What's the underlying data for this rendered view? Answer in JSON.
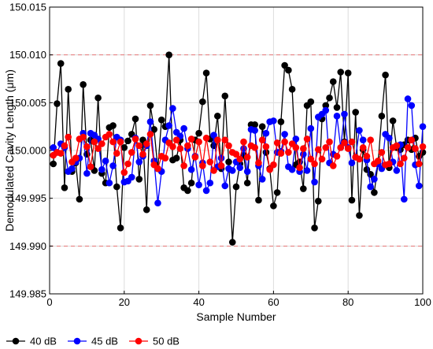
{
  "chart_data": {
    "type": "line",
    "xlabel": "Sample Number",
    "ylabel": "Demodulated Cavity Length (μm)",
    "xlim": [
      0,
      100
    ],
    "ylim": [
      149.985,
      150.015
    ],
    "xticks": [
      0,
      20,
      40,
      60,
      80,
      100
    ],
    "xtick_labels": [
      "0",
      "20",
      "40",
      "60",
      "80",
      "100"
    ],
    "yticks": [
      149.985,
      149.99,
      149.995,
      150.0,
      150.005,
      150.01,
      150.015
    ],
    "ytick_labels": [
      "149.985",
      "149.990",
      "149.995",
      "150.000",
      "150.005",
      "150.010",
      "150.015"
    ],
    "grid": true,
    "legend_position": "bottom",
    "reference_lines": [
      150.01,
      149.99
    ],
    "reference_line_color": "#e8797a",
    "series": [
      {
        "name": "40 dB",
        "color": "#000000",
        "x": [
          1,
          2,
          3,
          4,
          5,
          6,
          7,
          8,
          9,
          10,
          11,
          12,
          13,
          14,
          15,
          16,
          17,
          18,
          19,
          20,
          21,
          22,
          23,
          24,
          25,
          26,
          27,
          28,
          29,
          30,
          31,
          32,
          33,
          34,
          35,
          36,
          37,
          38,
          39,
          40,
          41,
          42,
          43,
          44,
          45,
          46,
          47,
          48,
          49,
          50,
          51,
          52,
          53,
          54,
          55,
          56,
          57,
          58,
          59,
          60,
          61,
          62,
          63,
          64,
          65,
          66,
          67,
          68,
          69,
          70,
          71,
          72,
          73,
          74,
          75,
          76,
          77,
          78,
          79,
          80,
          81,
          82,
          83,
          84,
          85,
          86,
          87,
          88,
          89,
          90,
          91,
          92,
          93,
          94,
          95,
          96,
          97,
          98,
          99,
          100
        ],
        "values": [
          149.9986,
          150.0049,
          150.0091,
          149.9961,
          150.0064,
          149.9978,
          149.9987,
          149.9949,
          150.0069,
          149.9996,
          150.0011,
          149.9979,
          150.0055,
          149.9976,
          149.9966,
          150.0024,
          150.0026,
          149.9962,
          149.9919,
          150.0003,
          150.001,
          150.0017,
          150.0033,
          149.997,
          150.0011,
          149.9938,
          150.0047,
          150.0022,
          149.9981,
          150.0032,
          150.0025,
          150.01,
          149.999,
          149.9992,
          150.0011,
          149.9961,
          149.9958,
          149.9966,
          150.0011,
          150.0018,
          150.0051,
          150.0081,
          150.0012,
          150.0005,
          150.0036,
          149.9981,
          150.0057,
          149.9988,
          149.9904,
          149.9962,
          149.9986,
          149.9995,
          149.9966,
          150.0027,
          150.0027,
          149.9948,
          150.0025,
          149.9998,
          149.9981,
          149.9942,
          149.9956,
          150.003,
          150.0089,
          150.0084,
          150.0064,
          149.9985,
          149.9988,
          149.996,
          150.0047,
          150.0051,
          149.9919,
          149.9947,
          150.0033,
          150.0047,
          150.0055,
          150.0072,
          150.0045,
          150.0082,
          150.0009,
          150.0081,
          149.9948,
          150.004,
          149.9932,
          150.0001,
          149.998,
          149.9975,
          149.9956,
          149.9986,
          150.0036,
          150.0079,
          149.9982,
          150.0031,
          150.0003,
          150.0001,
          150.0006,
          150.0011,
          150.0001,
          150.0013,
          149.9994,
          149.9998
        ]
      },
      {
        "name": "45 dB",
        "color": "#0000ff",
        "x": [
          1,
          2,
          3,
          4,
          5,
          6,
          7,
          8,
          9,
          10,
          11,
          12,
          13,
          14,
          15,
          16,
          17,
          18,
          19,
          20,
          21,
          22,
          23,
          24,
          25,
          26,
          27,
          28,
          29,
          30,
          31,
          32,
          33,
          34,
          35,
          36,
          37,
          38,
          39,
          40,
          41,
          42,
          43,
          44,
          45,
          46,
          47,
          48,
          49,
          50,
          51,
          52,
          53,
          54,
          55,
          56,
          57,
          58,
          59,
          60,
          61,
          62,
          63,
          64,
          65,
          66,
          67,
          68,
          69,
          70,
          71,
          72,
          73,
          74,
          75,
          76,
          77,
          78,
          79,
          80,
          81,
          82,
          83,
          84,
          85,
          86,
          87,
          88,
          89,
          90,
          91,
          92,
          93,
          94,
          95,
          96,
          97,
          98,
          99,
          100
        ],
        "values": [
          150.0003,
          149.9998,
          150.0007,
          150.0003,
          149.9978,
          149.9981,
          149.9988,
          149.9992,
          150.0018,
          149.9976,
          150.0018,
          150.0016,
          150.0012,
          149.998,
          149.9989,
          149.9966,
          149.9984,
          150.0014,
          150.0011,
          149.9967,
          149.9968,
          149.9972,
          150.0013,
          149.9988,
          149.9994,
          150.0005,
          150.003,
          149.9989,
          149.9945,
          149.9978,
          150.0011,
          150.0026,
          150.0044,
          150.0019,
          150.0015,
          150.0023,
          150.0002,
          149.998,
          149.9994,
          149.9964,
          149.9987,
          149.9958,
          149.9966,
          150.0016,
          149.9983,
          149.9992,
          149.9963,
          149.9981,
          149.9979,
          149.9988,
          149.9982,
          150.0002,
          149.9978,
          150.0022,
          150.0021,
          149.9984,
          149.997,
          150.0018,
          150.003,
          150.0031,
          149.9998,
          149.9999,
          150.0017,
          149.9983,
          149.998,
          150.0012,
          149.9978,
          149.9996,
          149.9979,
          150.0023,
          149.9967,
          150.0035,
          150.0038,
          150.0042,
          149.9987,
          149.9996,
          150.0036,
          150.0003,
          150.0038,
          150.0003,
          149.9987,
          149.9993,
          150.0021,
          150.0011,
          149.999,
          149.9962,
          149.997,
          149.9986,
          149.9981,
          150.0017,
          150.0013,
          149.9988,
          149.9979,
          150.0006,
          149.9949,
          150.0054,
          150.0047,
          149.9985,
          149.9963,
          150.0025
        ]
      },
      {
        "name": "50 dB",
        "color": "#ff0000",
        "x": [
          1,
          2,
          3,
          4,
          5,
          6,
          7,
          8,
          9,
          10,
          11,
          12,
          13,
          14,
          15,
          16,
          17,
          18,
          19,
          20,
          21,
          22,
          23,
          24,
          25,
          26,
          27,
          28,
          29,
          30,
          31,
          32,
          33,
          34,
          35,
          36,
          37,
          38,
          39,
          40,
          41,
          42,
          43,
          44,
          45,
          46,
          47,
          48,
          49,
          50,
          51,
          52,
          53,
          54,
          55,
          56,
          57,
          58,
          59,
          60,
          61,
          62,
          63,
          64,
          65,
          66,
          67,
          68,
          69,
          70,
          71,
          72,
          73,
          74,
          75,
          76,
          77,
          78,
          79,
          80,
          81,
          82,
          83,
          84,
          85,
          86,
          87,
          88,
          89,
          90,
          91,
          92,
          93,
          94,
          95,
          96,
          97,
          98,
          99,
          100
        ],
        "values": [
          149.9995,
          149.9998,
          149.9997,
          150.0005,
          150.0014,
          149.9988,
          149.9992,
          150.0012,
          150.0014,
          150.0004,
          149.9983,
          150.0009,
          150.0002,
          150.0007,
          150.0014,
          150.0017,
          150.0009,
          149.9997,
          150.0009,
          149.9977,
          149.9986,
          149.9998,
          150.0012,
          150.0005,
          149.9996,
          150.0007,
          150.0017,
          149.9985,
          149.9981,
          149.9994,
          149.9992,
          150.0008,
          150.0004,
          150.0011,
          150.0002,
          149.9984,
          150.0005,
          150.0012,
          149.9993,
          150.0009,
          149.9984,
          150.0013,
          149.9988,
          149.9979,
          150.0011,
          149.9984,
          150.0011,
          150.0005,
          149.9998,
          149.9996,
          149.9991,
          150.0009,
          149.9993,
          150.0005,
          150.0003,
          149.9987,
          150.0011,
          150.0004,
          149.998,
          149.9985,
          150.0008,
          149.9997,
          150.0009,
          149.9998,
          150.0007,
          150.0003,
          149.9982,
          150.0002,
          150.0012,
          149.9991,
          149.9986,
          150.0001,
          149.9991,
          150.0003,
          150.0009,
          149.9984,
          149.9994,
          150.0003,
          150.0008,
          150.0002,
          150.0009,
          149.9993,
          149.9991,
          150.0003,
          149.9994,
          150.0011,
          149.9986,
          149.9989,
          149.9998,
          149.9985,
          149.9986,
          150.0003,
          150.0005,
          149.9986,
          149.9992,
          150.0003,
          150.0011,
          150.0002,
          149.9986,
          150.0004
        ]
      }
    ]
  }
}
